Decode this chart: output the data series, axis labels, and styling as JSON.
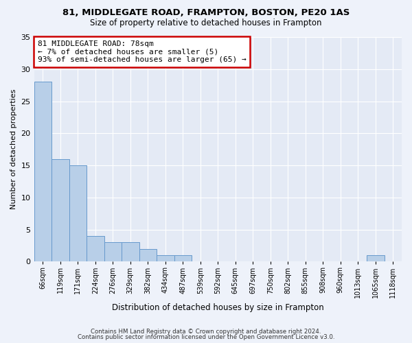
{
  "title1": "81, MIDDLEGATE ROAD, FRAMPTON, BOSTON, PE20 1AS",
  "title2": "Size of property relative to detached houses in Frampton",
  "xlabel": "Distribution of detached houses by size in Frampton",
  "ylabel": "Number of detached properties",
  "bar_labels": [
    "66sqm",
    "119sqm",
    "171sqm",
    "224sqm",
    "276sqm",
    "329sqm",
    "382sqm",
    "434sqm",
    "487sqm",
    "539sqm",
    "592sqm",
    "645sqm",
    "697sqm",
    "750sqm",
    "802sqm",
    "855sqm",
    "908sqm",
    "960sqm",
    "1013sqm",
    "1065sqm",
    "1118sqm"
  ],
  "bar_values": [
    28,
    16,
    15,
    4,
    3,
    3,
    2,
    1,
    1,
    0,
    0,
    0,
    0,
    0,
    0,
    0,
    0,
    0,
    0,
    1,
    0
  ],
  "bar_color": "#b8cfe8",
  "bar_edge_color": "#6699cc",
  "annotation_text": "81 MIDDLEGATE ROAD: 78sqm\n← 7% of detached houses are smaller (5)\n93% of semi-detached houses are larger (65) →",
  "annotation_box_color": "#ffffff",
  "annotation_box_edge_color": "#cc0000",
  "ylim": [
    0,
    35
  ],
  "yticks": [
    0,
    5,
    10,
    15,
    20,
    25,
    30,
    35
  ],
  "footer1": "Contains HM Land Registry data © Crown copyright and database right 2024.",
  "footer2": "Contains public sector information licensed under the Open Government Licence v3.0.",
  "background_color": "#eef2fa",
  "plot_bg_color": "#e4eaf5"
}
